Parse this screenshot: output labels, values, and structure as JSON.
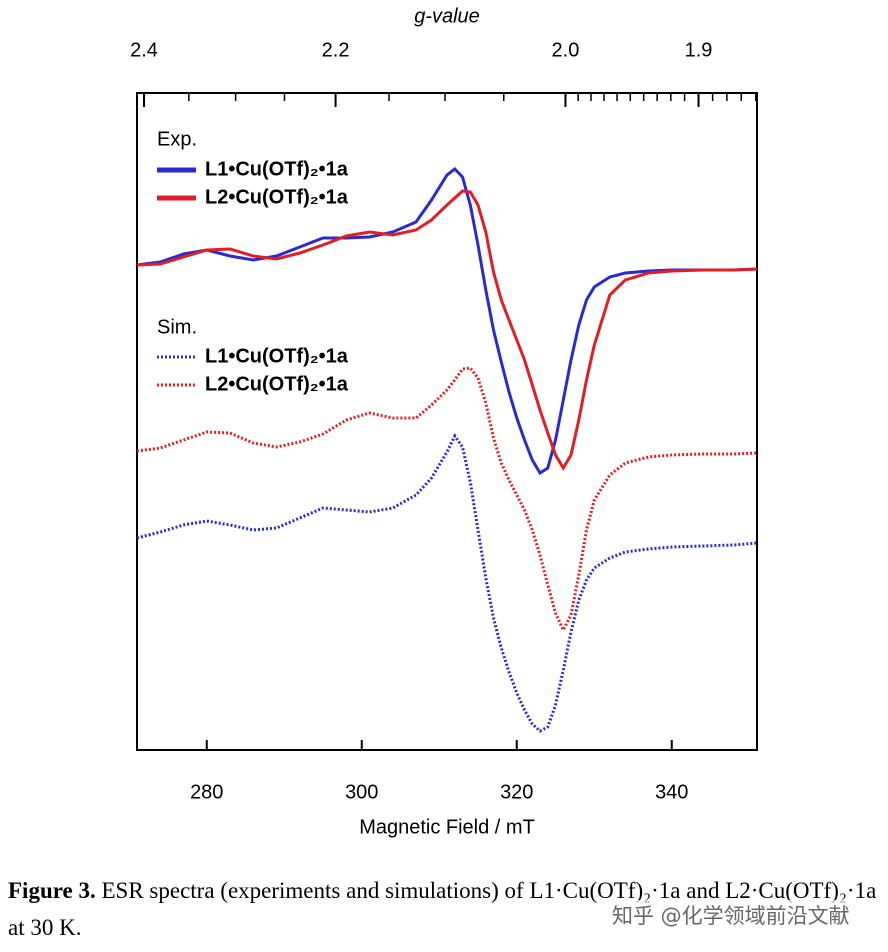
{
  "chart_data": {
    "type": "line",
    "x_label": "Magnetic Field / mT",
    "x2_label": "g-value",
    "xlim": [
      271,
      351
    ],
    "xticks": [
      280,
      300,
      320,
      340
    ],
    "x2lim": [
      2.408,
      1.859
    ],
    "x2scale": "reciprocal",
    "x2ticks": [
      2.4,
      2.2,
      {
        "value": 2,
        "label": "2.0"
      },
      1.9
    ],
    "x2minor_ticks": [
      2.35,
      2.3,
      2.25,
      2.15,
      2.1,
      2.05,
      1.99,
      1.98,
      1.97,
      1.96,
      1.95,
      1.94,
      1.93,
      1.92,
      1.91,
      1.89,
      1.88,
      1.87,
      1.86
    ],
    "ylim": [
      0,
      657
    ],
    "x": [
      271,
      274,
      277,
      280,
      283,
      286,
      289,
      292,
      295,
      298,
      301,
      304,
      307,
      309,
      311,
      312,
      313,
      314,
      315,
      316,
      317,
      318,
      319,
      320,
      321,
      322,
      323,
      324,
      325,
      326,
      327,
      328,
      329,
      330,
      332,
      334,
      337,
      340,
      344,
      348,
      351
    ],
    "groups": [
      {
        "name": "Exp.",
        "line_style": "solid",
        "series": [
          {
            "name": "L1•Cu(OTf)₂•1a",
            "color": "#2a2ad0",
            "values": [
              485,
              488,
              496,
              500,
              494,
              490,
              494,
              503,
              512,
              512,
              513,
              518,
              528,
              550,
              575,
              581,
              573,
              545,
              505,
              460,
              420,
              388,
              358,
              332,
              310,
              290,
              277,
              282,
              310,
              350,
              390,
              425,
              450,
              463,
              473,
              477,
              479,
              480,
              480,
              480,
              481
            ]
          },
          {
            "name": "L2•Cu(OTf)₂•1a",
            "color": "#e01e24",
            "values": [
              485,
              486,
              493,
              500,
              501,
              494,
              491,
              497,
              505,
              514,
              518,
              515,
              520,
              530,
              545,
              552,
              559,
              558,
              545,
              518,
              478,
              450,
              430,
              410,
              390,
              365,
              340,
              317,
              295,
              282,
              295,
              330,
              370,
              405,
              455,
              470,
              477,
              479,
              480,
              480,
              481
            ]
          }
        ]
      },
      {
        "name": "Sim.",
        "line_style": "dotted",
        "series": [
          {
            "name": "L1•Cu(OTf)₂•1a",
            "color": "#2a2ad0",
            "values": [
              212,
              218,
              225,
              229,
              225,
              220,
              222,
              232,
              242,
              240,
              238,
              242,
              255,
              272,
              298,
              314,
              303,
              268,
              220,
              172,
              132,
              102,
              78,
              57,
              40,
              26,
              19,
              23,
              45,
              80,
              118,
              150,
              170,
              182,
              192,
              198,
              201,
              203,
              204,
              205,
              207
            ]
          },
          {
            "name": "L2•Cu(OTf)₂•1a",
            "color": "#e01e24",
            "values": [
              299,
              302,
              310,
              318,
              317,
              307,
              303,
              308,
              316,
              330,
              337,
              332,
              332,
              345,
              360,
              370,
              381,
              382,
              372,
              347,
              312,
              287,
              270,
              255,
              240,
              220,
              195,
              165,
              137,
              120,
              135,
              175,
              220,
              250,
              275,
              287,
              293,
              295,
              296,
              296,
              297
            ]
          }
        ]
      }
    ]
  },
  "caption": {
    "label": "Figure 3.",
    "text": "ESR spectra (experiments and simulations) of L1·Cu(OTf)₂·1a and L2·Cu(OTf)₂·1a at 30 K."
  },
  "watermark": "知乎 @化学领域前沿文献"
}
